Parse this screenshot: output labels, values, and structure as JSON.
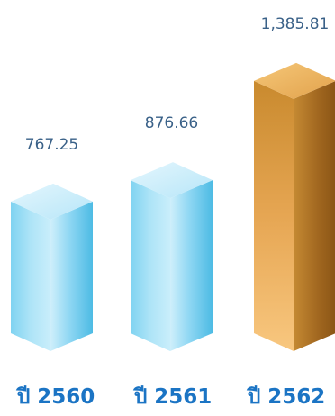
{
  "chart_data": {
    "type": "bar",
    "categories": [
      "ปี 2560",
      "ปี 2561",
      "ปี 2562"
    ],
    "values": [
      767.25,
      876.66,
      1385.81
    ],
    "value_labels": [
      "767.25",
      "876.66",
      "1,385.81"
    ],
    "title": "",
    "xlabel": "",
    "ylabel": "",
    "ylim": [
      0,
      1500
    ],
    "grid": false,
    "style": "3d-box",
    "colors": {
      "standard_front": "#9fdff5",
      "standard_side": "#56c2e8",
      "standard_top": "#cdeefa",
      "highlight_front": "#e2a250",
      "highlight_side": "#a9691d",
      "highlight_top": "#f1bf6c",
      "value_label": "#3a6188",
      "category_label": "#1b74c4"
    },
    "highlight_index": 2
  }
}
